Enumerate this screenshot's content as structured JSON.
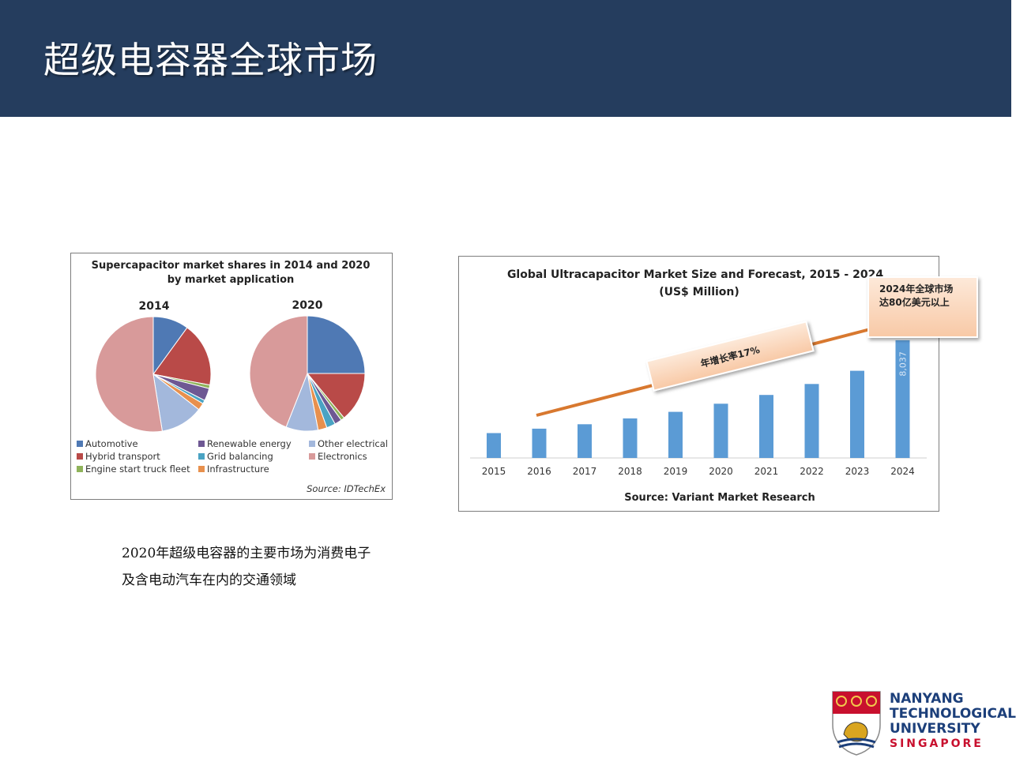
{
  "slide": {
    "title": "超级电容器全球市场",
    "caption_lines": [
      "2020年超级电容器的主要市场为消费电子",
      "及含电动汽车在内的交通领域"
    ]
  },
  "logo": {
    "line1": "NANYANG",
    "line2": "TECHNOLOGICAL",
    "line3": "UNIVERSITY",
    "line4": "SINGAPORE"
  },
  "chart_data": [
    {
      "type": "pie",
      "title": "Supercapacitor market shares in 2014 and 2020",
      "subtitle": "by market application",
      "source": "Source: IDTechEx",
      "categories": [
        "Automotive",
        "Hybrid transport",
        "Engine start truck fleet",
        "Renewable energy",
        "Grid balancing",
        "Infrastructure",
        "Other electrical",
        "Electronics"
      ],
      "colors": [
        "#4f79b4",
        "#b94a48",
        "#8fb35a",
        "#6e5893",
        "#4aa3c3",
        "#e8904d",
        "#a3b8dc",
        "#d89a9a"
      ],
      "series": [
        {
          "name": "2014",
          "values": [
            10,
            18,
            1,
            3.5,
            1,
            2,
            12,
            52.5
          ]
        },
        {
          "name": "2020",
          "values": [
            25,
            14,
            1,
            2,
            2.5,
            2.5,
            9,
            44
          ]
        }
      ],
      "legend_position": "bottom"
    },
    {
      "type": "bar",
      "title": "Global Ultracapacitor Market Size and Forecast, 2015 - 2024",
      "subtitle": "(US$ Million)",
      "source": "Source: Variant Market Research",
      "categories": [
        "2015",
        "2016",
        "2017",
        "2018",
        "2019",
        "2020",
        "2021",
        "2022",
        "2023",
        "2024"
      ],
      "values": [
        1700,
        2000,
        2300,
        2700,
        3150,
        3700,
        4300,
        5050,
        5950,
        8037
      ],
      "data_labels": {
        "2024": "8,037"
      },
      "color": "#5b9bd5",
      "ylim": [
        0,
        8300
      ],
      "grid": false,
      "annotations": {
        "growth": "年增长率17%",
        "callout_line1": "2024年全球市场",
        "callout_line2": "达80亿美元以上"
      }
    }
  ]
}
